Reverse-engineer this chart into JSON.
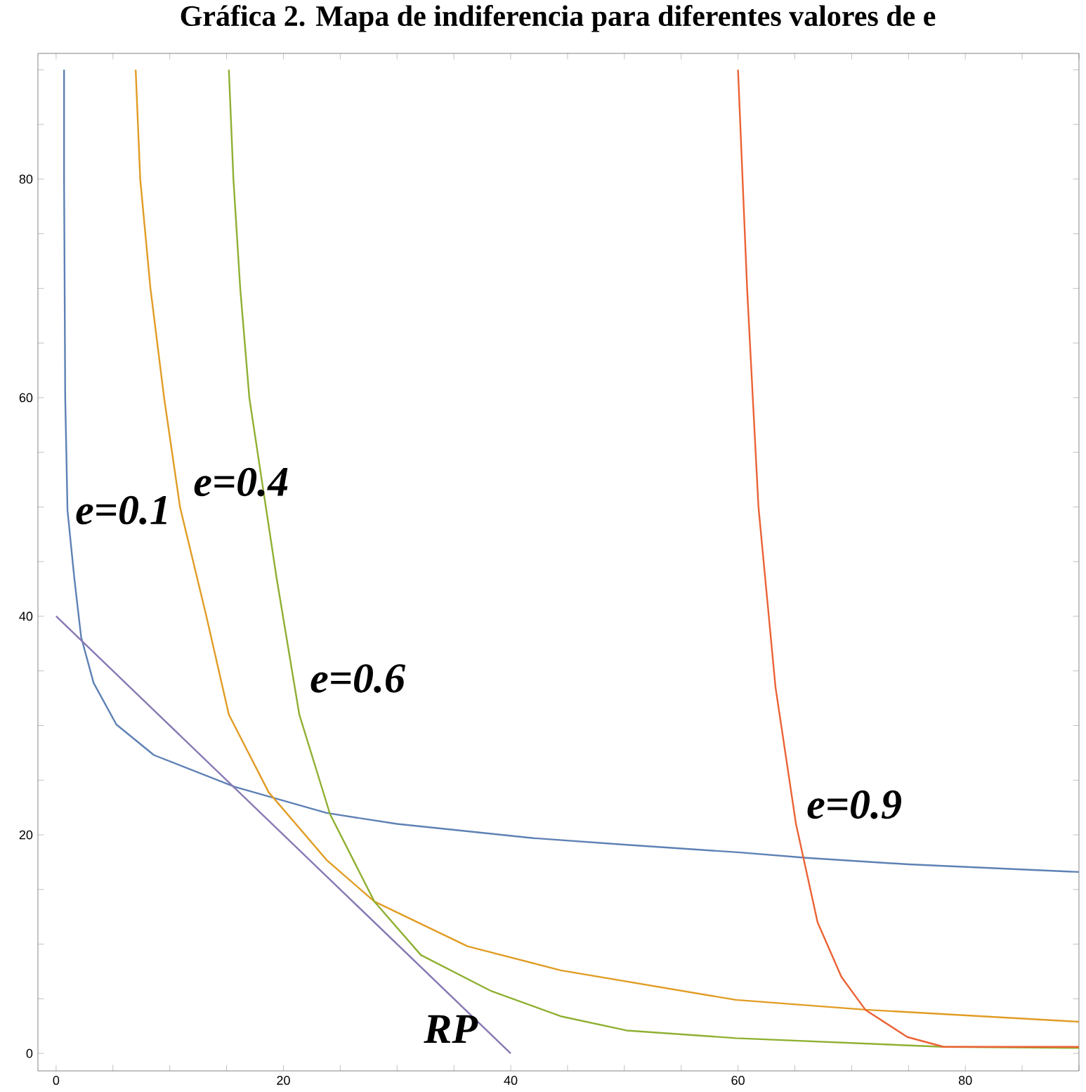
{
  "chart_data": {
    "type": "line",
    "title": "Gráfica 2. Mapa de indiferencia para diferentes valores de e",
    "xlim": [
      -1.6,
      90
    ],
    "ylim": [
      -1.6,
      91.5
    ],
    "xticks": [
      0,
      {
        "value": 5,
        "label": null
      },
      {
        "value": 10,
        "label": null
      },
      {
        "value": 15,
        "label": null
      },
      20,
      {
        "value": 25,
        "label": null
      },
      {
        "value": 30,
        "label": null
      },
      {
        "value": 35,
        "label": null
      },
      40,
      {
        "value": 45,
        "label": null
      },
      {
        "value": 50,
        "label": null
      },
      {
        "value": 55,
        "label": null
      },
      60,
      {
        "value": 65,
        "label": null
      },
      {
        "value": 70,
        "label": null
      },
      {
        "value": 75,
        "label": null
      },
      80,
      {
        "value": 85,
        "label": null
      },
      {
        "value": 90,
        "label": null
      }
    ],
    "yticks": [
      0,
      {
        "value": 5,
        "label": null
      },
      {
        "value": 10,
        "label": null
      },
      {
        "value": 15,
        "label": null
      },
      20,
      {
        "value": 25,
        "label": null
      },
      {
        "value": 30,
        "label": null
      },
      {
        "value": 35,
        "label": null
      },
      40,
      {
        "value": 45,
        "label": null
      },
      {
        "value": 50,
        "label": null
      },
      {
        "value": 55,
        "label": null
      },
      60,
      {
        "value": 65,
        "label": null
      },
      {
        "value": 70,
        "label": null
      },
      {
        "value": 75,
        "label": null
      },
      80,
      {
        "value": 85,
        "label": null
      },
      {
        "value": 90,
        "label": null
      }
    ],
    "grid": false,
    "legend": false,
    "marker": "none",
    "line_style": "solid",
    "series": [
      {
        "name": "e=0.1",
        "color": "#5e81b5",
        "x": [
          0.7,
          0.7,
          0.75,
          0.8,
          0.9,
          1.0,
          1.6,
          2.2,
          3.3,
          5.3,
          8.6,
          15.7,
          23.8,
          30,
          42,
          50,
          60,
          66,
          75,
          90
        ],
        "values": [
          90,
          80,
          70,
          60,
          55,
          49.7,
          43.5,
          38.1,
          33.9,
          30.1,
          27.3,
          24.4,
          22,
          21,
          19.7,
          19.1,
          18.4,
          17.9,
          17.3,
          16.6
        ]
      },
      {
        "name": "e=0.4",
        "color": "#e19c24",
        "x": [
          7,
          7.4,
          8.3,
          9.5,
          10.9,
          13.2,
          15.2,
          18.7,
          23.8,
          28,
          36.2,
          44.4,
          59.8,
          71.2,
          90
        ],
        "values": [
          90,
          80,
          70,
          60,
          50,
          40.1,
          31,
          23.9,
          17.7,
          13.9,
          9.8,
          7.6,
          4.9,
          4.0,
          2.9
        ]
      },
      {
        "name": "e=0.6",
        "color": "#8fb032",
        "x": [
          15.2,
          15.6,
          16.2,
          17,
          17.9,
          19.4,
          21.4,
          24.1,
          28,
          32.1,
          38.3,
          44.4,
          50.2,
          59.8,
          78.1,
          90
        ],
        "values": [
          90,
          80,
          70,
          60,
          53.8,
          43.5,
          31,
          21.9,
          13.9,
          9,
          5.7,
          3.4,
          2.1,
          1.4,
          0.6,
          0.5
        ]
      },
      {
        "name": "e=0.9",
        "color": "#eb6235",
        "x": [
          60,
          60.8,
          61.8,
          63.3,
          65.1,
          67,
          69.1,
          71.2,
          74.9,
          78.1,
          90
        ],
        "values": [
          90,
          70,
          50,
          33.5,
          21,
          12,
          7,
          4,
          1.5,
          0.6,
          0.6
        ]
      },
      {
        "name": "RP",
        "color": "#8778b3",
        "x": [
          0,
          40
        ],
        "values": [
          40,
          0
        ]
      }
    ]
  }
}
